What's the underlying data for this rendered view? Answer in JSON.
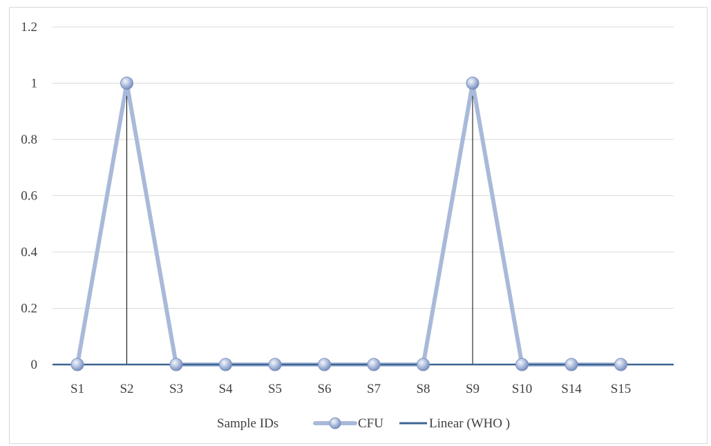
{
  "chart_data": {
    "type": "line",
    "categories": [
      "S1",
      "S2",
      "S3",
      "S4",
      "S5",
      "S6",
      "S7",
      "S8",
      "S9",
      "S10",
      "S14",
      "S15"
    ],
    "series": [
      {
        "name": "CFU",
        "values": [
          0,
          1,
          0,
          0,
          0,
          0,
          0,
          0,
          1,
          0,
          0,
          0
        ],
        "color": "#a9b9d9",
        "marker_color": "#8fa3cf"
      },
      {
        "name": "Linear (WHO )",
        "values": [
          0,
          0,
          0,
          0,
          0,
          0,
          0,
          0,
          0,
          0,
          0,
          0
        ],
        "color": "#3b6494"
      }
    ],
    "xlabel": "Sample IDs",
    "ylabel": "",
    "ylim": [
      0,
      1.2
    ],
    "yticks": [
      "0",
      "0.2",
      "0.4",
      "0.6",
      "0.8",
      "1",
      "1.2"
    ],
    "grid": true,
    "drop_lines": true,
    "legend_position": "bottom",
    "colors": {
      "grid": "#d9d9d9",
      "axis": "#3b6494",
      "drop_line": "#000000",
      "frame": "#d9d9d9"
    }
  }
}
